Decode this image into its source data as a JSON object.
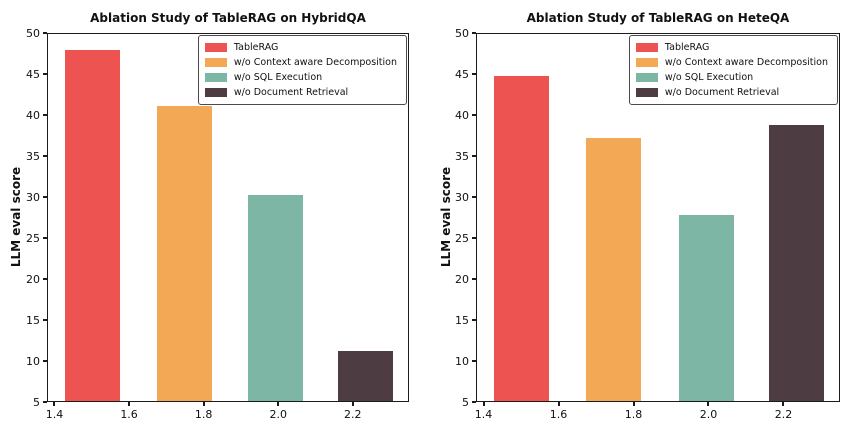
{
  "figure": {
    "background": "#ffffff",
    "axis_color": "#1b1b1b",
    "text_color": "#111111"
  },
  "chart_data": [
    {
      "type": "bar",
      "title": "Ablation Study of TableRAG on HybridQA",
      "ylabel": "LLM eval score",
      "xlabel": "",
      "ylim": [
        5,
        50
      ],
      "yticks": [
        5,
        10,
        15,
        20,
        25,
        30,
        35,
        40,
        45,
        50
      ],
      "xticklabels": [
        "1.4",
        "1.6",
        "1.8",
        "2.0",
        "2.2"
      ],
      "grid": false,
      "legend_position": "upper right",
      "series": [
        {
          "name": "TableRAG",
          "value": 47.9,
          "color": "#ED5351"
        },
        {
          "name": "w/o Context aware Decomposition",
          "value": 41.1,
          "color": "#F3A855"
        },
        {
          "name": "w/o SQL Execution",
          "value": 30.2,
          "color": "#7EB6A6"
        },
        {
          "name": "w/o Document Retrieval",
          "value": 11.2,
          "color": "#4D3C42"
        }
      ]
    },
    {
      "type": "bar",
      "title": "Ablation Study of TableRAG on HeteQA",
      "ylabel": "LLM eval score",
      "xlabel": "",
      "ylim": [
        5,
        50
      ],
      "yticks": [
        5,
        10,
        15,
        20,
        25,
        30,
        35,
        40,
        45,
        50
      ],
      "xticklabels": [
        "1.4",
        "1.6",
        "1.8",
        "2.0",
        "2.2"
      ],
      "grid": false,
      "legend_position": "upper right",
      "series": [
        {
          "name": "TableRAG",
          "value": 44.8,
          "color": "#ED5351"
        },
        {
          "name": "w/o Context aware Decomposition",
          "value": 37.2,
          "color": "#F3A855"
        },
        {
          "name": "w/o SQL Execution",
          "value": 27.8,
          "color": "#7EB6A6"
        },
        {
          "name": "w/o Document Retrieval",
          "value": 38.8,
          "color": "#4D3C42"
        }
      ]
    }
  ]
}
